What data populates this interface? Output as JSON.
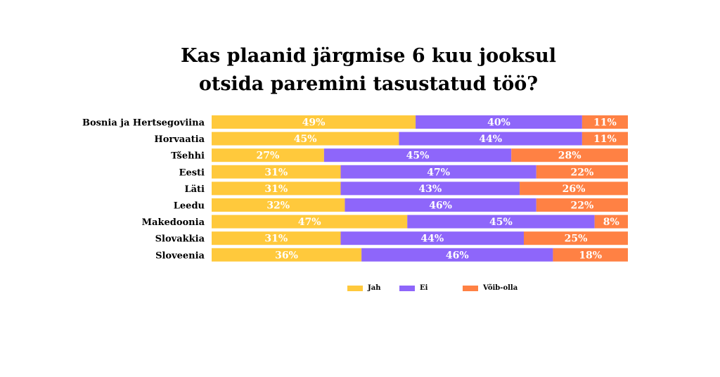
{
  "title_line1": "Kas plaanid järgmise 6 kuu jooksul",
  "title_line2": "otsida paremini tasustatud töö?",
  "colors": {
    "jah": "#FFC93C",
    "ei": "#8E66FA",
    "voib_olla": "#FF8144"
  },
  "legend": [
    {
      "key": "jah",
      "label": "Jah"
    },
    {
      "key": "ei",
      "label": "Ei"
    },
    {
      "key": "voib_olla",
      "label": "Võib-olla"
    }
  ],
  "chart_data": {
    "type": "bar",
    "orientation": "horizontal",
    "stacked": true,
    "unit": "%",
    "categories": [
      "Bosnia ja Hertsegoviina",
      "Horvaatia",
      "Tšehhi",
      "Eesti",
      "Läti",
      "Leedu",
      "Makedoonia",
      "Slovakkia",
      "Sloveenia"
    ],
    "series": [
      {
        "name": "Jah",
        "key": "jah",
        "values": [
          49,
          45,
          27,
          31,
          31,
          32,
          47,
          31,
          36
        ]
      },
      {
        "name": "Ei",
        "key": "ei",
        "values": [
          40,
          44,
          45,
          47,
          43,
          46,
          45,
          44,
          46
        ]
      },
      {
        "name": "Võib-olla",
        "key": "voib_olla",
        "values": [
          11,
          11,
          28,
          22,
          26,
          22,
          8,
          25,
          18
        ]
      }
    ],
    "xlim": [
      0,
      100
    ],
    "legend_position": "bottom",
    "grid": false
  }
}
